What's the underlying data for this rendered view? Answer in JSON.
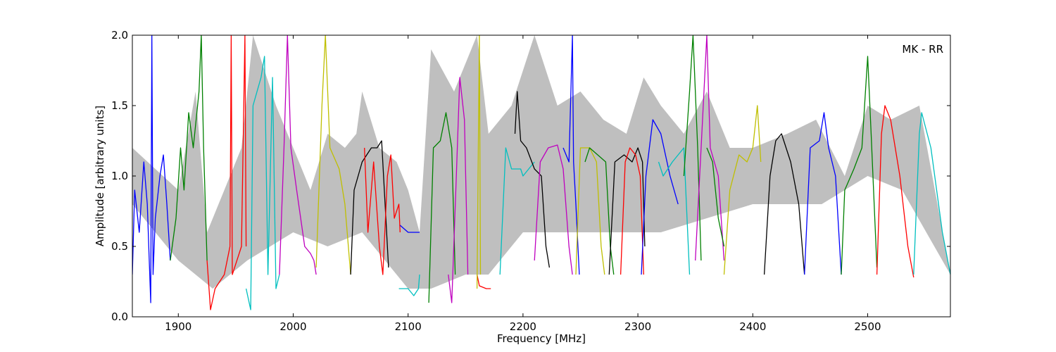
{
  "chart_data": {
    "type": "line",
    "title": "",
    "annotation": "MK - RR",
    "xlabel": "Frequency [MHz]",
    "ylabel": "Amplitude [arbitrary units]",
    "xlim": [
      1860,
      2572
    ],
    "ylim": [
      0.0,
      2.0
    ],
    "grid": false,
    "x_ticks": [
      1900,
      2000,
      2100,
      2200,
      2300,
      2400,
      2500
    ],
    "x_tick_labels": [
      "1900",
      "2000",
      "2100",
      "2200",
      "2300",
      "2400",
      "2500"
    ],
    "y_ticks": [
      0.0,
      0.5,
      1.0,
      1.5,
      2.0
    ],
    "y_tick_labels": [
      "0.0",
      "0.5",
      "1.0",
      "1.5",
      "2.0"
    ],
    "background_envelope": {
      "color": "#bfbfbf",
      "upper": [
        [
          1860,
          1.2
        ],
        [
          1900,
          0.9
        ],
        [
          1915,
          1.6
        ],
        [
          1925,
          0.6
        ],
        [
          1940,
          0.9
        ],
        [
          1955,
          1.2
        ],
        [
          1965,
          2.0
        ],
        [
          1985,
          1.5
        ],
        [
          2000,
          1.2
        ],
        [
          2015,
          0.9
        ],
        [
          2030,
          1.3
        ],
        [
          2045,
          1.2
        ],
        [
          2055,
          1.3
        ],
        [
          2060,
          1.6
        ],
        [
          2075,
          1.2
        ],
        [
          2090,
          1.1
        ],
        [
          2100,
          0.9
        ],
        [
          2110,
          0.6
        ],
        [
          2120,
          1.9
        ],
        [
          2140,
          1.6
        ],
        [
          2160,
          2.0
        ],
        [
          2170,
          1.3
        ],
        [
          2190,
          1.5
        ],
        [
          2210,
          2.0
        ],
        [
          2230,
          1.5
        ],
        [
          2250,
          1.6
        ],
        [
          2270,
          1.4
        ],
        [
          2290,
          1.3
        ],
        [
          2305,
          1.7
        ],
        [
          2320,
          1.5
        ],
        [
          2340,
          1.3
        ],
        [
          2360,
          1.6
        ],
        [
          2380,
          1.2
        ],
        [
          2400,
          1.2
        ],
        [
          2430,
          1.3
        ],
        [
          2455,
          1.4
        ],
        [
          2480,
          1.0
        ],
        [
          2500,
          1.5
        ],
        [
          2520,
          1.4
        ],
        [
          2545,
          1.5
        ],
        [
          2572,
          0.3
        ]
      ],
      "lower": [
        [
          1860,
          0.8
        ],
        [
          1900,
          0.4
        ],
        [
          1930,
          0.2
        ],
        [
          1960,
          0.4
        ],
        [
          2000,
          0.6
        ],
        [
          2030,
          0.5
        ],
        [
          2060,
          0.6
        ],
        [
          2080,
          0.4
        ],
        [
          2100,
          0.2
        ],
        [
          2120,
          0.2
        ],
        [
          2150,
          0.3
        ],
        [
          2170,
          0.3
        ],
        [
          2200,
          0.6
        ],
        [
          2240,
          0.6
        ],
        [
          2280,
          0.6
        ],
        [
          2320,
          0.6
        ],
        [
          2360,
          0.7
        ],
        [
          2400,
          0.8
        ],
        [
          2430,
          0.8
        ],
        [
          2460,
          0.8
        ],
        [
          2480,
          0.9
        ],
        [
          2500,
          1.0
        ],
        [
          2530,
          0.9
        ],
        [
          2572,
          0.3
        ]
      ]
    },
    "series": [
      {
        "color": "#0000ff",
        "points": [
          [
            1860,
            0.3
          ],
          [
            1862,
            0.9
          ],
          [
            1866,
            0.6
          ],
          [
            1870,
            1.1
          ],
          [
            1873,
            0.8
          ],
          [
            1876,
            0.1
          ],
          [
            1877,
            2.0
          ],
          [
            1878,
            0.3
          ],
          [
            1880,
            0.7
          ],
          [
            1884,
            1.0
          ],
          [
            1887,
            1.15
          ],
          [
            1890,
            0.8
          ],
          [
            1893,
            0.4
          ]
        ]
      },
      {
        "color": "#008000",
        "points": [
          [
            1893,
            0.4
          ],
          [
            1898,
            0.7
          ],
          [
            1902,
            1.2
          ],
          [
            1905,
            0.9
          ],
          [
            1909,
            1.45
          ],
          [
            1913,
            1.2
          ],
          [
            1918,
            1.6
          ],
          [
            1920,
            2.0
          ],
          [
            1922,
            1.2
          ],
          [
            1925,
            0.4
          ]
        ]
      },
      {
        "color": "#ff0000",
        "points": [
          [
            1925,
            0.4
          ],
          [
            1928,
            0.05
          ],
          [
            1932,
            0.2
          ],
          [
            1940,
            0.3
          ],
          [
            1945,
            0.5
          ],
          [
            1946,
            2.0
          ],
          [
            1947,
            0.3
          ],
          [
            1955,
            0.5
          ],
          [
            1958,
            2.0
          ],
          [
            1959,
            0.5
          ]
        ]
      },
      {
        "color": "#00bfbf",
        "points": [
          [
            1959,
            0.2
          ],
          [
            1963,
            0.05
          ],
          [
            1965,
            1.5
          ],
          [
            1972,
            1.7
          ],
          [
            1975,
            1.85
          ],
          [
            1978,
            0.3
          ],
          [
            1982,
            1.7
          ],
          [
            1985,
            0.2
          ],
          [
            1988,
            0.3
          ]
        ]
      },
      {
        "color": "#bf00bf",
        "points": [
          [
            1988,
            0.3
          ],
          [
            1992,
            1.2
          ],
          [
            1995,
            2.0
          ],
          [
            1998,
            1.2
          ],
          [
            2003,
            0.9
          ],
          [
            2010,
            0.5
          ],
          [
            2015,
            0.45
          ],
          [
            2018,
            0.4
          ],
          [
            2020,
            0.3
          ]
        ]
      },
      {
        "color": "#bfbf00",
        "points": [
          [
            2020,
            0.35
          ],
          [
            2025,
            1.5
          ],
          [
            2028,
            2.0
          ],
          [
            2032,
            1.2
          ],
          [
            2040,
            1.05
          ],
          [
            2045,
            0.8
          ],
          [
            2050,
            0.3
          ]
        ]
      },
      {
        "color": "#000000",
        "points": [
          [
            2050,
            0.3
          ],
          [
            2053,
            0.9
          ],
          [
            2060,
            1.1
          ],
          [
            2068,
            1.2
          ],
          [
            2073,
            1.2
          ],
          [
            2077,
            1.25
          ],
          [
            2080,
            0.8
          ],
          [
            2083,
            0.35
          ]
        ]
      },
      {
        "color": "#ff0000",
        "points": [
          [
            2062,
            1.2
          ],
          [
            2065,
            0.6
          ],
          [
            2070,
            1.1
          ],
          [
            2075,
            0.5
          ],
          [
            2078,
            0.3
          ],
          [
            2082,
            1.0
          ],
          [
            2085,
            1.15
          ],
          [
            2088,
            0.7
          ],
          [
            2092,
            0.8
          ],
          [
            2093,
            0.6
          ]
        ]
      },
      {
        "color": "#0000ff",
        "points": [
          [
            2093,
            0.65
          ],
          [
            2100,
            0.6
          ],
          [
            2108,
            0.6
          ],
          [
            2110,
            0.6
          ]
        ]
      },
      {
        "color": "#00bfbf",
        "points": [
          [
            2092,
            0.2
          ],
          [
            2100,
            0.2
          ],
          [
            2105,
            0.15
          ],
          [
            2109,
            0.2
          ],
          [
            2110,
            0.3
          ]
        ]
      },
      {
        "color": "#008000",
        "points": [
          [
            2118,
            0.1
          ],
          [
            2122,
            1.2
          ],
          [
            2128,
            1.25
          ],
          [
            2133,
            1.45
          ],
          [
            2138,
            1.2
          ],
          [
            2141,
            0.3
          ]
        ]
      },
      {
        "color": "#bf00bf",
        "points": [
          [
            2135,
            0.3
          ],
          [
            2138,
            0.1
          ],
          [
            2142,
            1.0
          ],
          [
            2145,
            1.7
          ],
          [
            2149,
            1.4
          ],
          [
            2152,
            0.3
          ]
        ]
      },
      {
        "color": "#ff0000",
        "points": [
          [
            2160,
            0.3
          ],
          [
            2162,
            0.22
          ],
          [
            2168,
            0.2
          ],
          [
            2172,
            0.2
          ]
        ]
      },
      {
        "color": "#bfbf00",
        "points": [
          [
            2160,
            0.2
          ],
          [
            2162,
            2.0
          ],
          [
            2163,
            0.3
          ]
        ]
      },
      {
        "color": "#00bfbf",
        "points": [
          [
            2180,
            0.3
          ],
          [
            2185,
            1.2
          ],
          [
            2190,
            1.05
          ],
          [
            2198,
            1.05
          ],
          [
            2200,
            1.0
          ],
          [
            2205,
            1.05
          ],
          [
            2210,
            1.1
          ]
        ]
      },
      {
        "color": "#000000",
        "points": [
          [
            2193,
            1.3
          ],
          [
            2195,
            1.6
          ],
          [
            2198,
            1.25
          ],
          [
            2203,
            1.2
          ],
          [
            2210,
            1.05
          ],
          [
            2216,
            1.0
          ],
          [
            2220,
            0.5
          ],
          [
            2223,
            0.35
          ]
        ]
      },
      {
        "color": "#bf00bf",
        "points": [
          [
            2210,
            0.4
          ],
          [
            2215,
            1.1
          ],
          [
            2222,
            1.2
          ],
          [
            2230,
            1.22
          ],
          [
            2235,
            1.05
          ],
          [
            2240,
            0.5
          ],
          [
            2243,
            0.3
          ]
        ]
      },
      {
        "color": "#0000ff",
        "points": [
          [
            2235,
            1.2
          ],
          [
            2240,
            1.1
          ],
          [
            2243,
            2.0
          ],
          [
            2244,
            1.1
          ],
          [
            2246,
            0.8
          ],
          [
            2249,
            0.3
          ]
        ]
      },
      {
        "color": "#bfbf00",
        "points": [
          [
            2246,
            0.3
          ],
          [
            2250,
            1.2
          ],
          [
            2258,
            1.2
          ],
          [
            2264,
            1.1
          ],
          [
            2268,
            0.5
          ],
          [
            2271,
            0.3
          ]
        ]
      },
      {
        "color": "#008000",
        "points": [
          [
            2254,
            1.1
          ],
          [
            2258,
            1.2
          ],
          [
            2265,
            1.15
          ],
          [
            2272,
            1.1
          ],
          [
            2276,
            0.5
          ],
          [
            2279,
            0.3
          ]
        ]
      },
      {
        "color": "#000000",
        "points": [
          [
            2275,
            0.3
          ],
          [
            2280,
            1.1
          ],
          [
            2288,
            1.15
          ],
          [
            2295,
            1.1
          ],
          [
            2300,
            1.2
          ],
          [
            2304,
            1.1
          ],
          [
            2306,
            0.5
          ]
        ]
      },
      {
        "color": "#ff0000",
        "points": [
          [
            2285,
            0.3
          ],
          [
            2289,
            1.1
          ],
          [
            2293,
            1.2
          ],
          [
            2298,
            1.15
          ],
          [
            2302,
            1.0
          ],
          [
            2305,
            0.3
          ]
        ]
      },
      {
        "color": "#0000ff",
        "points": [
          [
            2303,
            0.3
          ],
          [
            2307,
            1.0
          ],
          [
            2313,
            1.4
          ],
          [
            2320,
            1.3
          ],
          [
            2328,
            1.0
          ],
          [
            2335,
            0.8
          ]
        ]
      },
      {
        "color": "#00bfbf",
        "points": [
          [
            2318,
            1.1
          ],
          [
            2322,
            1.0
          ],
          [
            2330,
            1.1
          ],
          [
            2340,
            1.2
          ],
          [
            2345,
            0.3
          ]
        ]
      },
      {
        "color": "#008000",
        "points": [
          [
            2340,
            1.0
          ],
          [
            2345,
            1.6
          ],
          [
            2348,
            2.0
          ],
          [
            2352,
            1.2
          ],
          [
            2355,
            0.4
          ]
        ]
      },
      {
        "color": "#bf00bf",
        "points": [
          [
            2350,
            0.4
          ],
          [
            2355,
            1.2
          ],
          [
            2360,
            2.0
          ],
          [
            2363,
            1.2
          ],
          [
            2370,
            1.0
          ],
          [
            2375,
            0.4
          ]
        ]
      },
      {
        "color": "#008000",
        "points": [
          [
            2360,
            1.2
          ],
          [
            2365,
            1.1
          ],
          [
            2370,
            0.7
          ],
          [
            2375,
            0.5
          ]
        ]
      },
      {
        "color": "#bfbf00",
        "points": [
          [
            2375,
            0.3
          ],
          [
            2380,
            0.9
          ],
          [
            2388,
            1.15
          ],
          [
            2395,
            1.1
          ],
          [
            2400,
            1.2
          ],
          [
            2404,
            1.5
          ],
          [
            2407,
            1.1
          ]
        ]
      },
      {
        "color": "#000000",
        "points": [
          [
            2410,
            0.3
          ],
          [
            2415,
            1.0
          ],
          [
            2420,
            1.25
          ],
          [
            2425,
            1.3
          ],
          [
            2433,
            1.1
          ],
          [
            2440,
            0.8
          ],
          [
            2445,
            0.3
          ]
        ]
      },
      {
        "color": "#0000ff",
        "points": [
          [
            2445,
            0.3
          ],
          [
            2450,
            1.2
          ],
          [
            2458,
            1.25
          ],
          [
            2462,
            1.45
          ],
          [
            2466,
            1.2
          ],
          [
            2472,
            1.0
          ],
          [
            2477,
            0.3
          ]
        ]
      },
      {
        "color": "#008000",
        "points": [
          [
            2477,
            0.3
          ],
          [
            2480,
            0.9
          ],
          [
            2488,
            1.05
          ],
          [
            2495,
            1.2
          ],
          [
            2500,
            1.85
          ],
          [
            2503,
            1.3
          ],
          [
            2508,
            0.35
          ]
        ]
      },
      {
        "color": "#ff0000",
        "points": [
          [
            2508,
            0.3
          ],
          [
            2512,
            1.3
          ],
          [
            2515,
            1.5
          ],
          [
            2520,
            1.4
          ],
          [
            2528,
            1.0
          ],
          [
            2535,
            0.5
          ],
          [
            2540,
            0.28
          ]
        ]
      },
      {
        "color": "#00bfbf",
        "points": [
          [
            2540,
            0.3
          ],
          [
            2545,
            1.3
          ],
          [
            2547,
            1.45
          ],
          [
            2555,
            1.2
          ],
          [
            2565,
            0.6
          ],
          [
            2572,
            0.3
          ]
        ]
      }
    ]
  }
}
